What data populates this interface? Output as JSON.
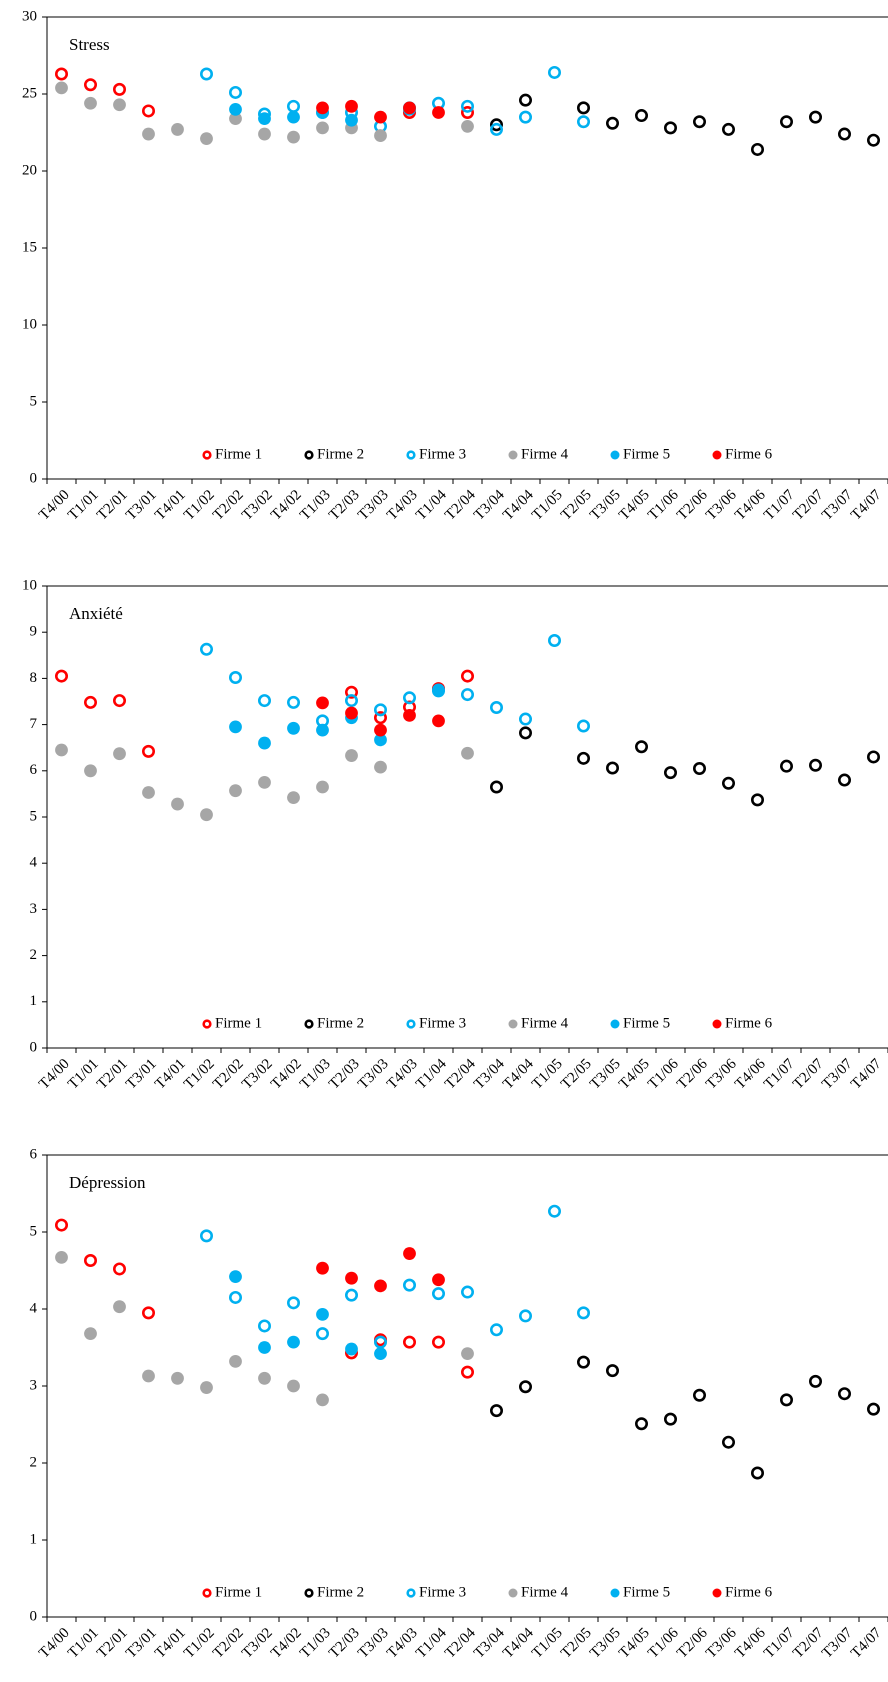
{
  "chart_data": [
    {
      "type": "scatter",
      "title": "Stress",
      "categories": [
        "T4/00",
        "T1/01",
        "T2/01",
        "T3/01",
        "T4/01",
        "T1/02",
        "T2/02",
        "T3/02",
        "T4/02",
        "T1/03",
        "T2/03",
        "T3/03",
        "T4/03",
        "T1/04",
        "T2/04",
        "T3/04",
        "T4/04",
        "T1/05",
        "T2/05",
        "T3/05",
        "T4/05",
        "T1/06",
        "T2/06",
        "T3/06",
        "T4/06",
        "T1/07",
        "T2/07",
        "T3/07",
        "T4/07"
      ],
      "ylim": [
        0,
        30
      ],
      "yticks": [
        0,
        5,
        10,
        15,
        20,
        25,
        30
      ],
      "legend": "bottom",
      "series": [
        {
          "name": "Firme 1",
          "color": "#ff0000",
          "marker": "open",
          "values": [
            26.3,
            25.6,
            25.3,
            23.9,
            null,
            null,
            null,
            null,
            null,
            null,
            null,
            null,
            23.8,
            null,
            23.8,
            null,
            null,
            null,
            null,
            null,
            null,
            null,
            null,
            null,
            null,
            null,
            null,
            null,
            null
          ]
        },
        {
          "name": "Firme 2",
          "color": "#000000",
          "marker": "open",
          "values": [
            null,
            null,
            null,
            null,
            null,
            null,
            null,
            null,
            null,
            null,
            null,
            null,
            null,
            null,
            null,
            23.0,
            24.6,
            null,
            24.1,
            23.1,
            23.6,
            22.8,
            23.2,
            22.7,
            21.4,
            23.2,
            23.5,
            22.4,
            22.0
          ]
        },
        {
          "name": "Firme 3",
          "color": "#00b0f0",
          "marker": "open",
          "values": [
            null,
            null,
            null,
            null,
            null,
            26.3,
            25.1,
            23.7,
            24.2,
            23.8,
            23.8,
            22.9,
            24.1,
            24.4,
            24.2,
            22.7,
            23.5,
            26.4,
            23.2,
            null,
            null,
            null,
            null,
            null,
            null,
            null,
            null,
            null,
            null
          ]
        },
        {
          "name": "Firme 4",
          "color": "#a6a6a6",
          "marker": "filled",
          "values": [
            25.4,
            24.4,
            24.3,
            22.4,
            22.7,
            22.1,
            23.4,
            22.4,
            22.2,
            22.8,
            22.8,
            22.3,
            null,
            null,
            22.9,
            null,
            null,
            null,
            null,
            null,
            null,
            null,
            null,
            null,
            null,
            null,
            null,
            null,
            null
          ]
        },
        {
          "name": "Firme 5",
          "color": "#00b0f0",
          "marker": "filled",
          "values": [
            null,
            null,
            null,
            null,
            null,
            null,
            24.0,
            23.4,
            23.5,
            23.8,
            23.3,
            null,
            24.0,
            null,
            null,
            null,
            null,
            null,
            null,
            null,
            null,
            null,
            null,
            null,
            null,
            null,
            null,
            null,
            null
          ]
        },
        {
          "name": "Firme 6",
          "color": "#ff0000",
          "marker": "filled",
          "values": [
            null,
            null,
            null,
            null,
            null,
            null,
            null,
            null,
            null,
            24.1,
            24.2,
            23.5,
            24.1,
            23.8,
            null,
            null,
            null,
            null,
            null,
            null,
            null,
            null,
            null,
            null,
            null,
            null,
            null,
            null,
            null
          ]
        }
      ]
    },
    {
      "type": "scatter",
      "title": "Anxiété",
      "categories": [
        "T4/00",
        "T1/01",
        "T2/01",
        "T3/01",
        "T4/01",
        "T1/02",
        "T2/02",
        "T3/02",
        "T4/02",
        "T1/03",
        "T2/03",
        "T3/03",
        "T4/03",
        "T1/04",
        "T2/04",
        "T3/04",
        "T4/04",
        "T1/05",
        "T2/05",
        "T3/05",
        "T4/05",
        "T1/06",
        "T2/06",
        "T3/06",
        "T4/06",
        "T1/07",
        "T2/07",
        "T3/07",
        "T4/07"
      ],
      "ylim": [
        0,
        10
      ],
      "yticks": [
        0,
        1,
        2,
        3,
        4,
        5,
        6,
        7,
        8,
        9,
        10
      ],
      "legend": "bottom",
      "series": [
        {
          "name": "Firme 1",
          "color": "#ff0000",
          "marker": "open",
          "values": [
            8.05,
            7.48,
            7.52,
            6.42,
            null,
            null,
            null,
            null,
            null,
            null,
            7.7,
            7.15,
            7.38,
            7.78,
            8.05,
            null,
            null,
            null,
            null,
            null,
            null,
            null,
            null,
            null,
            null,
            null,
            null,
            null,
            null
          ]
        },
        {
          "name": "Firme 2",
          "color": "#000000",
          "marker": "open",
          "values": [
            null,
            null,
            null,
            null,
            null,
            null,
            null,
            null,
            null,
            null,
            null,
            null,
            null,
            null,
            null,
            5.65,
            6.82,
            null,
            6.27,
            6.06,
            6.52,
            5.96,
            6.05,
            5.73,
            5.37,
            6.1,
            6.12,
            5.8,
            6.3
          ]
        },
        {
          "name": "Firme 3",
          "color": "#00b0f0",
          "marker": "open",
          "values": [
            null,
            null,
            null,
            null,
            null,
            8.63,
            8.02,
            7.52,
            7.48,
            7.08,
            7.52,
            7.32,
            7.58,
            7.73,
            7.65,
            7.37,
            7.12,
            8.82,
            6.97,
            null,
            null,
            null,
            null,
            null,
            null,
            null,
            null,
            null,
            null
          ]
        },
        {
          "name": "Firme 4",
          "color": "#a6a6a6",
          "marker": "filled",
          "values": [
            6.45,
            6.0,
            6.37,
            5.53,
            5.28,
            5.05,
            5.57,
            5.75,
            5.42,
            5.65,
            6.33,
            6.08,
            null,
            null,
            6.38,
            null,
            null,
            null,
            null,
            null,
            null,
            null,
            null,
            null,
            null,
            null,
            null,
            null,
            null
          ]
        },
        {
          "name": "Firme 5",
          "color": "#00b0f0",
          "marker": "filled",
          "values": [
            null,
            null,
            null,
            null,
            null,
            null,
            6.95,
            6.6,
            6.92,
            6.88,
            7.15,
            6.67,
            null,
            7.75,
            null,
            null,
            null,
            null,
            null,
            null,
            null,
            null,
            null,
            null,
            null,
            null,
            null,
            null,
            null
          ]
        },
        {
          "name": "Firme 6",
          "color": "#ff0000",
          "marker": "filled",
          "values": [
            null,
            null,
            null,
            null,
            null,
            null,
            null,
            null,
            null,
            7.47,
            7.25,
            6.88,
            7.2,
            7.08,
            null,
            null,
            null,
            null,
            null,
            null,
            null,
            null,
            null,
            null,
            null,
            null,
            null,
            null,
            null
          ]
        }
      ]
    },
    {
      "type": "scatter",
      "title": "Dépression",
      "categories": [
        "T4/00",
        "T1/01",
        "T2/01",
        "T3/01",
        "T4/01",
        "T1/02",
        "T2/02",
        "T3/02",
        "T4/02",
        "T1/03",
        "T2/03",
        "T3/03",
        "T4/03",
        "T1/04",
        "T2/04",
        "T3/04",
        "T4/04",
        "T1/05",
        "T2/05",
        "T3/05",
        "T4/05",
        "T1/06",
        "T2/06",
        "T3/06",
        "T4/06",
        "T1/07",
        "T2/07",
        "T3/07",
        "T4/07"
      ],
      "ylim": [
        0,
        6
      ],
      "yticks": [
        0,
        1,
        2,
        3,
        4,
        5,
        6
      ],
      "legend": "bottom",
      "series": [
        {
          "name": "Firme 1",
          "color": "#ff0000",
          "marker": "open",
          "values": [
            5.09,
            4.63,
            4.52,
            3.95,
            null,
            null,
            null,
            null,
            null,
            null,
            3.43,
            3.6,
            3.57,
            3.57,
            3.18,
            null,
            null,
            null,
            null,
            null,
            null,
            null,
            null,
            null,
            null,
            null,
            null,
            null,
            null
          ]
        },
        {
          "name": "Firme 2",
          "color": "#000000",
          "marker": "open",
          "values": [
            null,
            null,
            null,
            null,
            null,
            null,
            null,
            null,
            null,
            null,
            null,
            null,
            null,
            null,
            null,
            2.68,
            2.99,
            null,
            3.31,
            3.2,
            2.51,
            2.57,
            2.88,
            2.27,
            1.87,
            2.82,
            3.06,
            2.9,
            2.7
          ]
        },
        {
          "name": "Firme 3",
          "color": "#00b0f0",
          "marker": "open",
          "values": [
            null,
            null,
            null,
            null,
            null,
            4.95,
            4.15,
            3.78,
            4.08,
            3.68,
            4.18,
            3.57,
            4.31,
            4.2,
            4.22,
            3.73,
            3.91,
            5.27,
            3.95,
            null,
            null,
            null,
            null,
            null,
            null,
            null,
            null,
            null,
            null
          ]
        },
        {
          "name": "Firme 4",
          "color": "#a6a6a6",
          "marker": "filled",
          "values": [
            4.67,
            3.68,
            4.03,
            3.13,
            3.1,
            2.98,
            3.32,
            3.1,
            3.0,
            2.82,
            null,
            null,
            null,
            null,
            3.42,
            null,
            null,
            null,
            null,
            null,
            null,
            null,
            null,
            null,
            null,
            null,
            null,
            null,
            null
          ]
        },
        {
          "name": "Firme 5",
          "color": "#00b0f0",
          "marker": "filled",
          "values": [
            null,
            null,
            null,
            null,
            null,
            null,
            4.42,
            3.5,
            3.57,
            3.93,
            3.48,
            3.42,
            null,
            null,
            null,
            null,
            null,
            null,
            null,
            null,
            null,
            null,
            null,
            null,
            null,
            null,
            null,
            null,
            null
          ]
        },
        {
          "name": "Firme 6",
          "color": "#ff0000",
          "marker": "filled",
          "values": [
            null,
            null,
            null,
            null,
            null,
            null,
            null,
            null,
            null,
            4.53,
            4.4,
            4.3,
            4.72,
            4.38,
            null,
            null,
            null,
            null,
            null,
            null,
            null,
            null,
            null,
            null,
            null,
            null,
            null,
            null,
            null
          ]
        }
      ]
    }
  ]
}
